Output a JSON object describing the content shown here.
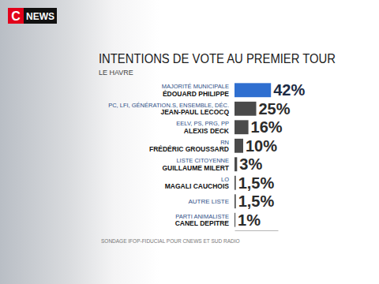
{
  "chart_data": {
    "type": "bar",
    "orientation": "horizontal",
    "logo": [
      "C",
      "NEWS"
    ],
    "title": "INTENTIONS DE VOTE AU PREMIER TOUR",
    "subtitle": "LE HAVRE",
    "source": "SONDAGE IFOP-FIDUCIAL POUR CNEWS ET SUD RADIO",
    "categories": [
      "MAJORITÉ MUNICIPALE\nÉDOUARD PHILIPPE",
      "PC, LFI, GÉNÉRATION.S, ENSEMBLE, DÉC.\nJEAN-PAUL LECOCQ",
      "EELV, PS, PRG, PP\nALEXIS DECK",
      "RN\nFRÉDÉRIC GROUSSARD",
      "LISTE CITOYENNE\nGUILLAUME MILERT",
      "LO\nMAGALI CAUCHOIS",
      "AUTRE LISTE",
      "PARTI ANIMALISTE\nCANEL DEPITRE"
    ],
    "values": [
      42,
      25,
      16,
      10,
      3,
      1.5,
      1.5,
      1
    ],
    "value_labels": [
      "42%",
      "25%",
      "16%",
      "10%",
      "3%",
      "1,5%",
      "1,5%",
      "1%"
    ],
    "colors": [
      "#2f6fd0",
      "#4a4a4a",
      "#4a4a4a",
      "#4a4a4a",
      "#4a4a4a",
      "#4a4a4a",
      "#4a4a4a",
      "#4a4a4a"
    ],
    "xlim": [
      0,
      50
    ],
    "grid": false,
    "data_labels": true,
    "tick_labels": false
  }
}
